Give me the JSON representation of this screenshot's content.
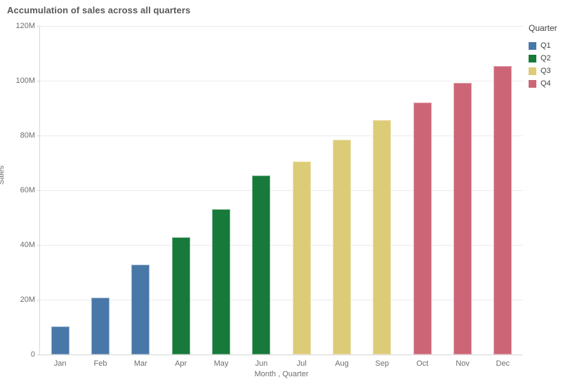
{
  "title": "Accumulation of sales across all quarters",
  "legend": {
    "title": "Quarter",
    "items": [
      {
        "label": "Q1",
        "color": "#4878a8"
      },
      {
        "label": "Q2",
        "color": "#177a3a"
      },
      {
        "label": "Q3",
        "color": "#ddcc77"
      },
      {
        "label": "Q4",
        "color": "#cc6677"
      }
    ]
  },
  "chart_data": {
    "type": "bar",
    "title": "Accumulation of sales across all quarters",
    "xlabel": "Month , Quarter",
    "ylabel": "Sales",
    "unit": "M",
    "ylim": [
      0,
      120
    ],
    "ytick_labels": [
      "0",
      "20M",
      "40M",
      "60M",
      "80M",
      "100M",
      "120M"
    ],
    "ytick_values": [
      0,
      20,
      40,
      60,
      80,
      100,
      120
    ],
    "grid": true,
    "legend_position": "top-right",
    "categories": [
      "Jan",
      "Feb",
      "Mar",
      "Apr",
      "May",
      "Jun",
      "Jul",
      "Aug",
      "Sep",
      "Oct",
      "Nov",
      "Dec"
    ],
    "values": [
      10.3,
      20.8,
      32.9,
      42.7,
      53.1,
      65.4,
      70.5,
      78.4,
      85.7,
      92.0,
      99.2,
      105.4
    ],
    "quarters": [
      "Q1",
      "Q1",
      "Q1",
      "Q2",
      "Q2",
      "Q2",
      "Q3",
      "Q3",
      "Q3",
      "Q4",
      "Q4",
      "Q4"
    ],
    "series_colors": {
      "Q1": "#4878a8",
      "Q2": "#177a3a",
      "Q3": "#ddcc77",
      "Q4": "#cc6677"
    }
  }
}
